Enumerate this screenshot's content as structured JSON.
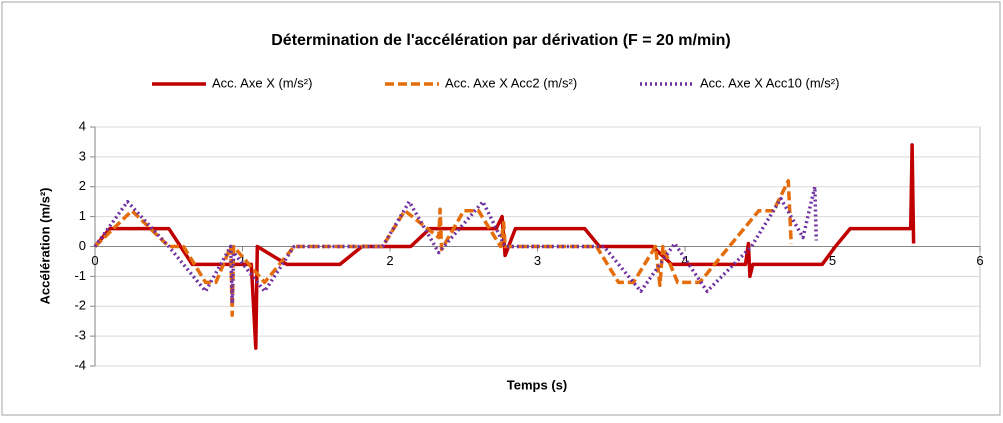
{
  "chart_data": {
    "type": "line",
    "title": "Détermination de l'accélération par dérivation (F = 20 m/min)",
    "xlabel": "Temps (s)",
    "ylabel": "Accélération (m/s²)",
    "xlim": [
      0,
      6
    ],
    "xticks": [
      0,
      1,
      2,
      3,
      4,
      5,
      6
    ],
    "ylim": [
      -4,
      4
    ],
    "yticks": [
      -4,
      -3,
      -2,
      -1,
      0,
      1,
      2,
      3,
      4
    ],
    "grid": true,
    "legend": "top",
    "series": [
      {
        "name": "Acc. Axe X (m/s²)",
        "color": "#c00000",
        "style": "solid",
        "x": [
          0,
          0.1,
          0.5,
          0.66,
          1.06,
          1.09,
          1.1,
          1.3,
          1.66,
          1.81,
          2.14,
          2.27,
          2.72,
          2.76,
          2.78,
          2.85,
          3.32,
          3.42,
          3.78,
          3.91,
          4.41,
          4.43,
          4.44,
          4.46,
          4.93,
          5.02,
          5.12,
          5.53,
          5.54,
          5.55
        ],
        "values": [
          0,
          0.6,
          0.6,
          -0.6,
          -0.6,
          -3.4,
          0,
          -0.6,
          -0.6,
          0,
          0,
          0.6,
          0.6,
          1.0,
          -0.3,
          0.6,
          0.6,
          0,
          0,
          -0.6,
          -0.6,
          0.1,
          -1.0,
          -0.6,
          -0.6,
          0,
          0.6,
          0.6,
          3.4,
          0.1
        ]
      },
      {
        "name": "Acc. Axe X Acc2 (m/s²)",
        "color": "#e46c0a",
        "style": "dashed",
        "x": [
          0,
          0.25,
          0.5,
          0.6,
          0.75,
          0.82,
          0.92,
          0.93,
          0.94,
          1.15,
          1.35,
          1.95,
          2.1,
          2.33,
          2.34,
          2.35,
          2.5,
          2.6,
          2.75,
          2.77,
          2.78,
          3.4,
          3.55,
          3.65,
          3.8,
          3.83,
          3.85,
          3.95,
          4.1,
          4.3,
          4.5,
          4.6,
          4.7,
          4.72
        ],
        "values": [
          0,
          1.2,
          0,
          0,
          -1.2,
          -1.2,
          0,
          -2.3,
          0,
          -1.2,
          0,
          0,
          1.2,
          0.3,
          1.25,
          -0.1,
          1.2,
          1.2,
          0,
          0.8,
          0,
          0,
          -1.2,
          -1.2,
          0,
          -1.3,
          0,
          -1.2,
          -1.2,
          0,
          1.2,
          1.2,
          2.2,
          0.1
        ]
      },
      {
        "name": "Acc. Axe X Acc10 (m/s²)",
        "color": "#7030a0",
        "style": "dotted",
        "x": [
          0,
          0.22,
          0.5,
          0.75,
          0.92,
          0.93,
          0.94,
          1.15,
          1.35,
          1.95,
          2.13,
          2.33,
          2.63,
          2.78,
          3.45,
          3.7,
          3.93,
          4.15,
          4.45,
          4.65,
          4.8,
          4.88,
          4.89
        ],
        "values": [
          0,
          1.5,
          0,
          -1.5,
          0,
          -1.9,
          -0.2,
          -1.5,
          0,
          0,
          1.5,
          -0.2,
          1.5,
          0,
          0,
          -1.5,
          0.1,
          -1.5,
          0,
          1.6,
          0.3,
          2.0,
          0.2
        ]
      }
    ]
  }
}
